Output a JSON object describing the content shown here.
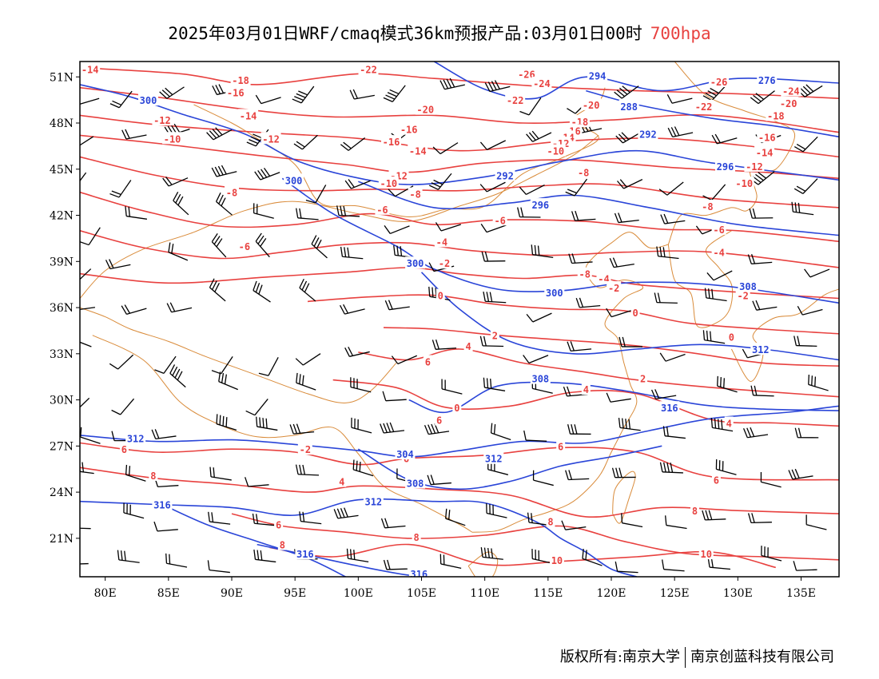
{
  "title": {
    "main": "2025年03月01日WRF/cmaq模式36km预报产品:03月01日00时",
    "level": "700hpa"
  },
  "colors": {
    "temperature": "#e8413f",
    "height": "#2a45d8",
    "border": "#d98b3a",
    "wind": "#000000"
  },
  "axes": {
    "x_labels": [
      "80E",
      "85E",
      "90E",
      "95E",
      "100E",
      "105E",
      "110E",
      "115E",
      "120E",
      "125E",
      "130E",
      "135E"
    ],
    "y_labels": [
      "51N",
      "48N",
      "45N",
      "42N",
      "39N",
      "36N",
      "33N",
      "30N",
      "27N",
      "24N",
      "21N"
    ],
    "lon_range": [
      78,
      138
    ],
    "lat_range": [
      18.5,
      52
    ]
  },
  "temp_labels": [
    {
      "t": "-14",
      "lon": 78.8,
      "lat": 51.5
    },
    {
      "t": "-18",
      "lon": 90.7,
      "lat": 50.8
    },
    {
      "t": "-16",
      "lon": 90.3,
      "lat": 50.0
    },
    {
      "t": "-22",
      "lon": 100.8,
      "lat": 51.5
    },
    {
      "t": "-26",
      "lon": 113.3,
      "lat": 51.2
    },
    {
      "t": "-24",
      "lon": 114.5,
      "lat": 50.6
    },
    {
      "t": "-26",
      "lon": 128.5,
      "lat": 50.7
    },
    {
      "t": "-24",
      "lon": 134.2,
      "lat": 50.1
    },
    {
      "t": "-20",
      "lon": 134.0,
      "lat": 49.3
    },
    {
      "t": "-22",
      "lon": 112.4,
      "lat": 49.5
    },
    {
      "t": "-20",
      "lon": 118.4,
      "lat": 49.2
    },
    {
      "t": "-22",
      "lon": 127.3,
      "lat": 49.1
    },
    {
      "t": "-18",
      "lon": 133.0,
      "lat": 48.5
    },
    {
      "t": "-20",
      "lon": 105.3,
      "lat": 48.9
    },
    {
      "t": "-14",
      "lon": 91.3,
      "lat": 48.5
    },
    {
      "t": "-12",
      "lon": 84.5,
      "lat": 48.2
    },
    {
      "t": "-10",
      "lon": 85.3,
      "lat": 47.0
    },
    {
      "t": "-12",
      "lon": 93.1,
      "lat": 47.0
    },
    {
      "t": "-16",
      "lon": 104.0,
      "lat": 47.6
    },
    {
      "t": "-16",
      "lon": 102.6,
      "lat": 46.8
    },
    {
      "t": "-14",
      "lon": 104.7,
      "lat": 46.2
    },
    {
      "t": "-18",
      "lon": 117.5,
      "lat": 48.1
    },
    {
      "t": "-16",
      "lon": 116.9,
      "lat": 47.5
    },
    {
      "t": "-14",
      "lon": 116.4,
      "lat": 47.1
    },
    {
      "t": "-12",
      "lon": 116.0,
      "lat": 46.7
    },
    {
      "t": "-10",
      "lon": 115.6,
      "lat": 46.2
    },
    {
      "t": "-16",
      "lon": 132.3,
      "lat": 47.1
    },
    {
      "t": "-14",
      "lon": 132.1,
      "lat": 46.1
    },
    {
      "t": "-12",
      "lon": 131.3,
      "lat": 45.2
    },
    {
      "t": "-10",
      "lon": 130.5,
      "lat": 44.1
    },
    {
      "t": "-12",
      "lon": 103.2,
      "lat": 44.6
    },
    {
      "t": "-10",
      "lon": 102.4,
      "lat": 44.1
    },
    {
      "t": "-8",
      "lon": 104.5,
      "lat": 43.4
    },
    {
      "t": "-8",
      "lon": 90.0,
      "lat": 43.5
    },
    {
      "t": "-8",
      "lon": 117.8,
      "lat": 44.8
    },
    {
      "t": "-8",
      "lon": 127.6,
      "lat": 42.6
    },
    {
      "t": "-6",
      "lon": 101.9,
      "lat": 42.4
    },
    {
      "t": "-6",
      "lon": 111.2,
      "lat": 41.7
    },
    {
      "t": "-6",
      "lon": 128.5,
      "lat": 41.1
    },
    {
      "t": "-6",
      "lon": 91.0,
      "lat": 40.0
    },
    {
      "t": "-4",
      "lon": 106.6,
      "lat": 40.3
    },
    {
      "t": "-2",
      "lon": 106.8,
      "lat": 38.9
    },
    {
      "t": "-4",
      "lon": 128.5,
      "lat": 39.6
    },
    {
      "t": "-8",
      "lon": 117.9,
      "lat": 38.2
    },
    {
      "t": "-4",
      "lon": 119.4,
      "lat": 37.9
    },
    {
      "t": "-2",
      "lon": 120.2,
      "lat": 37.3
    },
    {
      "t": "-2",
      "lon": 130.4,
      "lat": 36.8
    },
    {
      "t": "0",
      "lon": 106.5,
      "lat": 36.8
    },
    {
      "t": "0",
      "lon": 121.9,
      "lat": 35.7
    },
    {
      "t": "2",
      "lon": 110.8,
      "lat": 34.2
    },
    {
      "t": "4",
      "lon": 108.7,
      "lat": 33.5
    },
    {
      "t": "0",
      "lon": 129.5,
      "lat": 34.1
    },
    {
      "t": "6",
      "lon": 105.5,
      "lat": 32.5
    },
    {
      "t": "2",
      "lon": 122.5,
      "lat": 31.4
    },
    {
      "t": "4",
      "lon": 118.0,
      "lat": 30.7
    },
    {
      "t": "6",
      "lon": 106.4,
      "lat": 28.7
    },
    {
      "t": "4",
      "lon": 129.3,
      "lat": 28.5
    },
    {
      "t": "6",
      "lon": 116.0,
      "lat": 27.0
    },
    {
      "t": "-2",
      "lon": 95.8,
      "lat": 26.8
    },
    {
      "t": "6",
      "lon": 81.5,
      "lat": 26.8
    },
    {
      "t": "8",
      "lon": 83.8,
      "lat": 25.1
    },
    {
      "t": "4",
      "lon": 98.7,
      "lat": 24.7
    },
    {
      "t": "6",
      "lon": 103.8,
      "lat": 26.2
    },
    {
      "t": "6",
      "lon": 128.3,
      "lat": 24.8
    },
    {
      "t": "8",
      "lon": 115.2,
      "lat": 22.1
    },
    {
      "t": "8",
      "lon": 126.6,
      "lat": 22.8
    },
    {
      "t": "6",
      "lon": 93.7,
      "lat": 21.9
    },
    {
      "t": "8",
      "lon": 94.0,
      "lat": 20.6
    },
    {
      "t": "8",
      "lon": 104.6,
      "lat": 21.1
    },
    {
      "t": "10",
      "lon": 115.7,
      "lat": 19.6
    },
    {
      "t": "10",
      "lon": 127.5,
      "lat": 20.0
    },
    {
      "t": "0",
      "lon": 107.8,
      "lat": 29.5
    }
  ],
  "height_labels": [
    {
      "t": "300",
      "lon": 83.4,
      "lat": 49.5
    },
    {
      "t": "300",
      "lon": 94.9,
      "lat": 44.3
    },
    {
      "t": "294",
      "lon": 118.9,
      "lat": 51.1
    },
    {
      "t": "288",
      "lon": 121.4,
      "lat": 49.1
    },
    {
      "t": "276",
      "lon": 132.3,
      "lat": 50.8
    },
    {
      "t": "292",
      "lon": 122.9,
      "lat": 47.3
    },
    {
      "t": "296",
      "lon": 129.0,
      "lat": 45.2
    },
    {
      "t": "292",
      "lon": 111.6,
      "lat": 44.6
    },
    {
      "t": "296",
      "lon": 114.4,
      "lat": 42.7
    },
    {
      "t": "300",
      "lon": 104.5,
      "lat": 38.9
    },
    {
      "t": "300",
      "lon": 115.5,
      "lat": 37.0
    },
    {
      "t": "308",
      "lon": 130.8,
      "lat": 37.4
    },
    {
      "t": "312",
      "lon": 131.8,
      "lat": 33.3
    },
    {
      "t": "308",
      "lon": 114.4,
      "lat": 31.4
    },
    {
      "t": "316",
      "lon": 124.6,
      "lat": 29.5
    },
    {
      "t": "312",
      "lon": 82.4,
      "lat": 27.5
    },
    {
      "t": "304",
      "lon": 103.7,
      "lat": 26.5
    },
    {
      "t": "308",
      "lon": 104.5,
      "lat": 24.6
    },
    {
      "t": "312",
      "lon": 110.7,
      "lat": 26.2
    },
    {
      "t": "312",
      "lon": 101.2,
      "lat": 23.4
    },
    {
      "t": "316",
      "lon": 84.5,
      "lat": 23.2
    },
    {
      "t": "316",
      "lon": 95.8,
      "lat": 20.0
    },
    {
      "t": "316",
      "lon": 104.8,
      "lat": 18.7
    }
  ],
  "footer": {
    "left": "版权所有:南京大学",
    "right": "南京创蓝科技有限公司"
  }
}
